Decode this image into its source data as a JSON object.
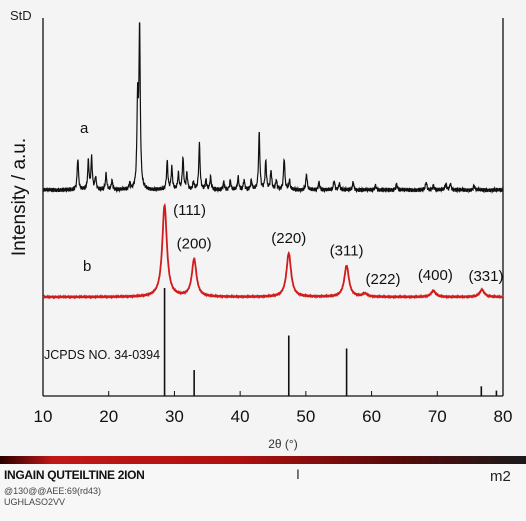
{
  "corner_label": "StD",
  "chart_data": {
    "type": "line",
    "title": "",
    "xlabel": "2θ (°)",
    "ylabel": "Intensity / a.u.",
    "xlim": [
      10,
      80
    ],
    "x_ticks": [
      10,
      20,
      30,
      40,
      50,
      60,
      70,
      80
    ],
    "grid": false,
    "series": [
      {
        "name": "a",
        "color": "#111111",
        "peaks": [
          [
            15.3,
            0.2
          ],
          [
            16.9,
            0.18
          ],
          [
            17.4,
            0.2
          ],
          [
            18.0,
            0.08
          ],
          [
            19.6,
            0.1
          ],
          [
            20.5,
            0.06
          ],
          [
            23.2,
            0.04
          ],
          [
            24.4,
            0.55
          ],
          [
            24.7,
            1.0
          ],
          [
            28.9,
            0.18
          ],
          [
            29.6,
            0.14
          ],
          [
            30.6,
            0.1
          ],
          [
            31.3,
            0.2
          ],
          [
            31.9,
            0.1
          ],
          [
            32.9,
            0.05
          ],
          [
            33.8,
            0.29
          ],
          [
            34.8,
            0.06
          ],
          [
            35.5,
            0.08
          ],
          [
            37.5,
            0.05
          ],
          [
            38.5,
            0.06
          ],
          [
            39.7,
            0.08
          ],
          [
            40.6,
            0.06
          ],
          [
            41.7,
            0.06
          ],
          [
            42.9,
            0.36
          ],
          [
            43.9,
            0.18
          ],
          [
            44.7,
            0.12
          ],
          [
            45.5,
            0.06
          ],
          [
            46.7,
            0.2
          ],
          [
            47.5,
            0.06
          ],
          [
            50.1,
            0.1
          ],
          [
            52.0,
            0.05
          ],
          [
            54.3,
            0.06
          ],
          [
            55.1,
            0.04
          ],
          [
            57.2,
            0.05
          ],
          [
            60.6,
            0.03
          ],
          [
            63.8,
            0.04
          ],
          [
            68.3,
            0.05
          ],
          [
            69.4,
            0.03
          ],
          [
            71.3,
            0.04
          ],
          [
            72.0,
            0.04
          ],
          [
            75.6,
            0.03
          ]
        ]
      },
      {
        "name": "b",
        "color": "#d01c1c",
        "peaks": [
          [
            28.5,
            0.88
          ],
          [
            33.0,
            0.36
          ],
          [
            47.4,
            0.42
          ],
          [
            56.2,
            0.3
          ],
          [
            59.0,
            0.03
          ],
          [
            69.4,
            0.06
          ],
          [
            76.8,
            0.07
          ]
        ]
      }
    ],
    "peak_labels": [
      {
        "hkl": "(111)",
        "x": 28.5
      },
      {
        "hkl": "(200)",
        "x": 33.0
      },
      {
        "hkl": "(220)",
        "x": 47.4
      },
      {
        "hkl": "(311)",
        "x": 56.2
      },
      {
        "hkl": "(222)",
        "x": 59.0
      },
      {
        "hkl": "(400)",
        "x": 69.4
      },
      {
        "hkl": "(331)",
        "x": 76.8
      }
    ],
    "reference": {
      "label": "JCPDS NO. 34-0394",
      "lines": [
        {
          "x": 28.5,
          "intensity": 1.0
        },
        {
          "x": 33.0,
          "intensity": 0.24
        },
        {
          "x": 47.4,
          "intensity": 0.56
        },
        {
          "x": 56.2,
          "intensity": 0.44
        },
        {
          "x": 76.7,
          "intensity": 0.09
        },
        {
          "x": 79.0,
          "intensity": 0.05
        }
      ]
    }
  },
  "footer": {
    "title": "INGAIN QUTEILTINE 2ION",
    "sub1": "@130@@AEE:69(rd43)",
    "sub2": "UGHLASO2VV",
    "mark": "I",
    "right": "m2"
  }
}
